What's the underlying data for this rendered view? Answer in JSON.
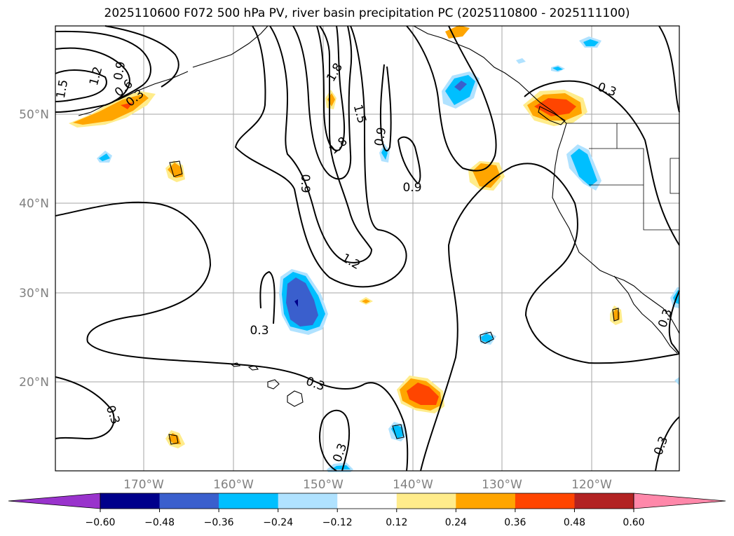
{
  "title": "2025110600 F072 500 hPa PV, river basin precipitation PC (2025110800 - 2025111100)",
  "lat_labels": [
    "50°N",
    "40°N",
    "30°N",
    "20°N"
  ],
  "lon_labels": [
    "170°W",
    "160°W",
    "150°W",
    "140°W",
    "130°W",
    "120°W"
  ],
  "contour_labels": [
    "1.5",
    "1.2",
    "0.9",
    "0.6",
    "0.3",
    "1.8",
    "1.5",
    "1.8",
    "0.9",
    "0.9",
    "0.3",
    "0.9",
    "1.2",
    "0.3",
    "0.3",
    "0.3",
    "0.3",
    "0.3",
    "0.3"
  ],
  "colorbar": {
    "ticks": [
      "−0.60",
      "−0.48",
      "−0.36",
      "−0.24",
      "−0.12",
      "0.12",
      "0.24",
      "0.36",
      "0.48",
      "0.60"
    ],
    "colors": [
      "#9933cc",
      "#00008b",
      "#3a5fcd",
      "#00bfff",
      "#b0e2ff",
      "#ffffff",
      "#ffec8b",
      "#ffa500",
      "#ff4500",
      "#b22222",
      "#ff88aa"
    ]
  }
}
